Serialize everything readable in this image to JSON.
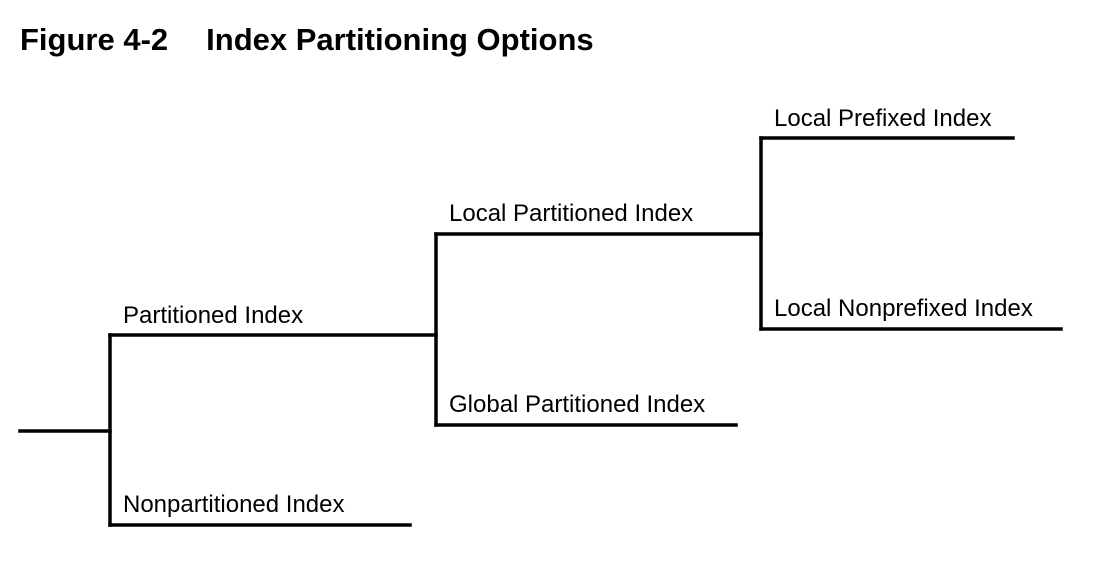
{
  "figure": {
    "number": "Figure 4-2",
    "title": "Index Partitioning Options"
  },
  "nodes": {
    "partitioned": "Partitioned Index",
    "nonpartitioned": "Nonpartitioned Index",
    "local_partitioned": "Local Partitioned Index",
    "global_partitioned": "Global Partitioned Index",
    "local_prefixed": "Local Prefixed Index",
    "local_nonprefixed": "Local Nonprefixed Index"
  }
}
